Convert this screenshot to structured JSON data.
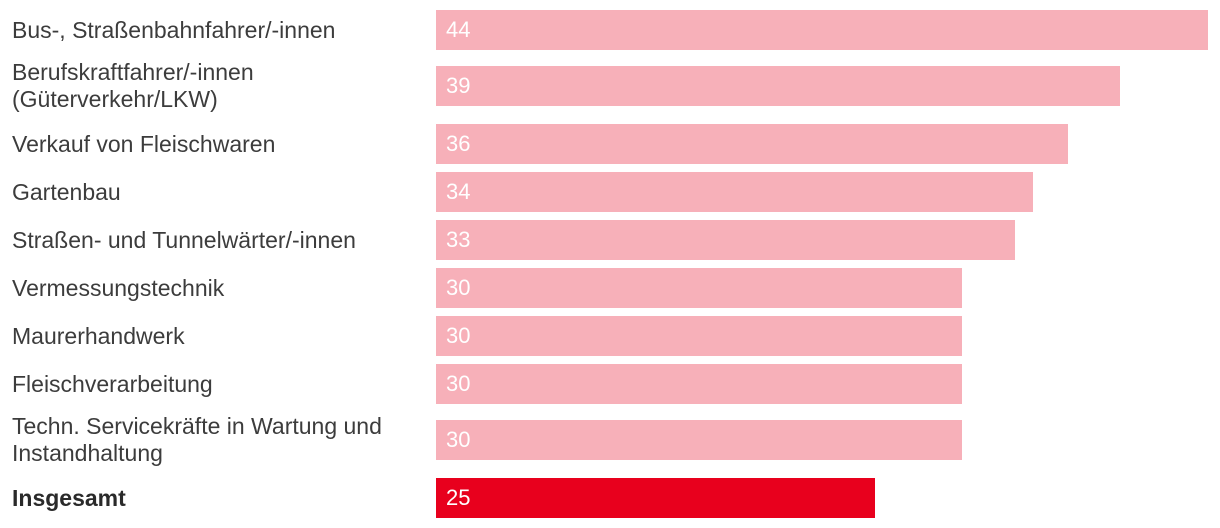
{
  "chart_data": {
    "type": "bar",
    "orientation": "horizontal",
    "categories": [
      "Bus-, Straßenbahnfahrer/-innen",
      "Berufskraftfahrer/-innen (Güterverkehr/LKW)",
      "Verkauf von Fleischwaren",
      "Gartenbau",
      "Straßen- und Tunnelwärter/-innen",
      "Vermessungstechnik",
      "Maurerhandwerk",
      "Fleischverarbeitung",
      "Techn. Servicekräfte in Wartung und Instandhaltung",
      "Insgesamt"
    ],
    "category_lines": [
      [
        "Bus-, Straßenbahnfahrer/-innen"
      ],
      [
        "Berufskraftfahrer/-innen",
        "(Güterverkehr/LKW)"
      ],
      [
        "Verkauf von Fleischwaren"
      ],
      [
        "Gartenbau"
      ],
      [
        "Straßen- und Tunnelwärter/-innen"
      ],
      [
        "Vermessungstechnik"
      ],
      [
        "Maurerhandwerk"
      ],
      [
        "Fleischverarbeitung"
      ],
      [
        "Techn. Servicekräfte in Wartung und",
        "Instandhaltung"
      ],
      [
        "Insgesamt"
      ]
    ],
    "values": [
      44,
      39,
      36,
      34,
      33,
      30,
      30,
      30,
      30,
      25
    ],
    "value_labels": [
      "44",
      "39",
      "36",
      "34",
      "33",
      "30",
      "30",
      "30",
      "30",
      "25"
    ],
    "highlight_index": 9,
    "bold_label_index": 9,
    "xlim": [
      0,
      44
    ],
    "grid": false,
    "legend": "none",
    "colors": {
      "bar": "#f7b0b9",
      "highlight": "#e8001d",
      "label_text": "#3c3c3c",
      "value_text": "#ffffff"
    }
  }
}
